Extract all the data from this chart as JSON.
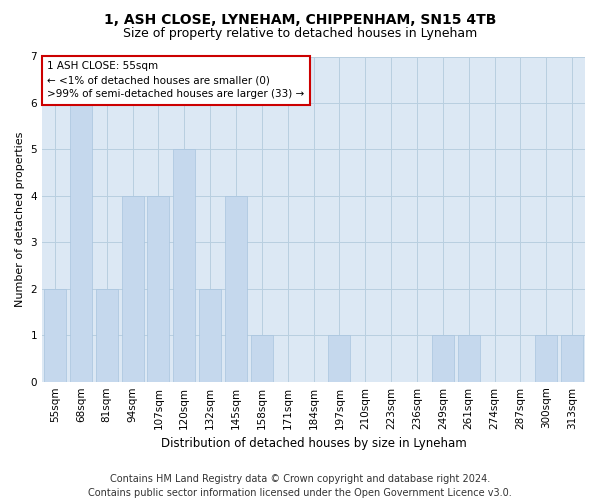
{
  "title1": "1, ASH CLOSE, LYNEHAM, CHIPPENHAM, SN15 4TB",
  "title2": "Size of property relative to detached houses in Lyneham",
  "xlabel": "Distribution of detached houses by size in Lyneham",
  "ylabel": "Number of detached properties",
  "categories": [
    "55sqm",
    "68sqm",
    "81sqm",
    "94sqm",
    "107sqm",
    "120sqm",
    "132sqm",
    "145sqm",
    "158sqm",
    "171sqm",
    "184sqm",
    "197sqm",
    "210sqm",
    "223sqm",
    "236sqm",
    "249sqm",
    "261sqm",
    "274sqm",
    "287sqm",
    "300sqm",
    "313sqm"
  ],
  "values": [
    2,
    6,
    2,
    4,
    4,
    5,
    2,
    4,
    1,
    0,
    0,
    1,
    0,
    0,
    0,
    1,
    1,
    0,
    0,
    1,
    1
  ],
  "bar_color": "#c5d8ed",
  "bar_edge_color": "#a8c4de",
  "annotation_box_text": "1 ASH CLOSE: 55sqm\n← <1% of detached houses are smaller (0)\n>99% of semi-detached houses are larger (33) →",
  "annotation_box_color": "#ffffff",
  "annotation_box_edge_color": "#cc0000",
  "ylim": [
    0,
    7
  ],
  "yticks": [
    0,
    1,
    2,
    3,
    4,
    5,
    6,
    7
  ],
  "grid_color": "#b8cfe0",
  "bg_color": "#dce8f4",
  "fig_bg_color": "#ffffff",
  "footer1": "Contains HM Land Registry data © Crown copyright and database right 2024.",
  "footer2": "Contains public sector information licensed under the Open Government Licence v3.0.",
  "title1_fontsize": 10,
  "title2_fontsize": 9,
  "xlabel_fontsize": 8.5,
  "ylabel_fontsize": 8,
  "tick_fontsize": 7.5,
  "footer_fontsize": 7,
  "annotation_fontsize": 7.5
}
